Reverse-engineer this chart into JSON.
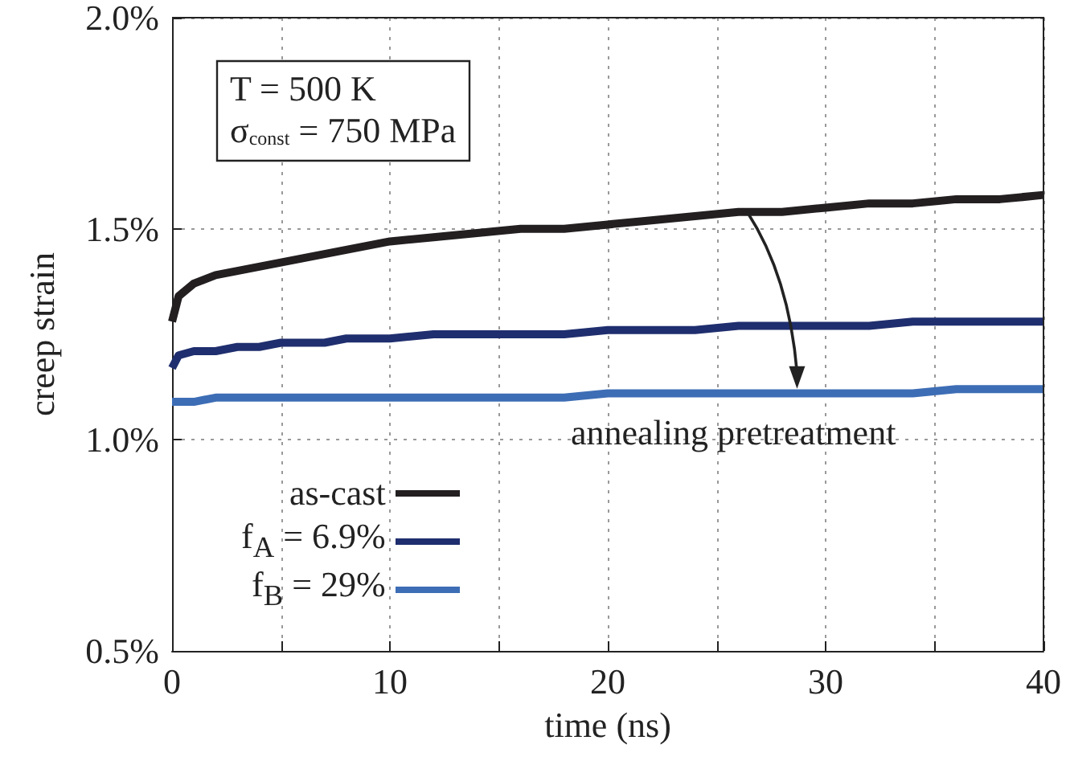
{
  "chart_data": {
    "type": "line",
    "xlabel": "time (ns)",
    "ylabel": "creep strain",
    "x": [
      0,
      0.3,
      1,
      2,
      3,
      4,
      5,
      6,
      7,
      8,
      9,
      10,
      12,
      14,
      16,
      18,
      20,
      22,
      24,
      26,
      28,
      30,
      32,
      34,
      36,
      38,
      40
    ],
    "series": [
      {
        "name": "as-cast",
        "color": "#231f20",
        "values": [
          1.28,
          1.34,
          1.37,
          1.39,
          1.4,
          1.41,
          1.42,
          1.43,
          1.44,
          1.45,
          1.46,
          1.47,
          1.48,
          1.49,
          1.5,
          1.5,
          1.51,
          1.52,
          1.53,
          1.54,
          1.54,
          1.55,
          1.56,
          1.56,
          1.57,
          1.57,
          1.58
        ]
      },
      {
        "name": "f$_{A}$ = 6.9%",
        "color": "#1f2e6e",
        "values": [
          1.17,
          1.2,
          1.21,
          1.21,
          1.22,
          1.22,
          1.23,
          1.23,
          1.23,
          1.24,
          1.24,
          1.24,
          1.25,
          1.25,
          1.25,
          1.25,
          1.26,
          1.26,
          1.26,
          1.27,
          1.27,
          1.27,
          1.27,
          1.28,
          1.28,
          1.28,
          1.28
        ]
      },
      {
        "name": "f$_{B}$ = 29%",
        "color": "#3d6db5",
        "values": [
          1.09,
          1.09,
          1.09,
          1.1,
          1.1,
          1.1,
          1.1,
          1.1,
          1.1,
          1.1,
          1.1,
          1.1,
          1.1,
          1.1,
          1.1,
          1.1,
          1.11,
          1.11,
          1.11,
          1.11,
          1.11,
          1.11,
          1.11,
          1.11,
          1.12,
          1.12,
          1.12
        ]
      }
    ],
    "xlim": [
      0,
      40
    ],
    "xticks": [
      0,
      {
        "value": 5,
        "label": null
      },
      10,
      {
        "value": 15,
        "label": null
      },
      20,
      {
        "value": 25,
        "label": null
      },
      30,
      {
        "value": 35,
        "label": null
      },
      40
    ],
    "ylim": [
      0.5,
      2.0
    ],
    "yticks": [
      {
        "value": 0.5,
        "label": "0.5%"
      },
      {
        "value": 1.0,
        "label": "1.0%"
      },
      {
        "value": 1.5,
        "label": "1.5%"
      },
      {
        "value": 2.0,
        "label": "2.0%"
      }
    ],
    "grid": true,
    "legend": "bottom left",
    "marker": "none",
    "line_style": "solid",
    "annotations": [
      "T = 500 K",
      "σ$_{const}$ = 750 MPa",
      {
        "text": "annealing pretreatment",
        "x": 26.4,
        "y": 1.54
      }
    ]
  }
}
